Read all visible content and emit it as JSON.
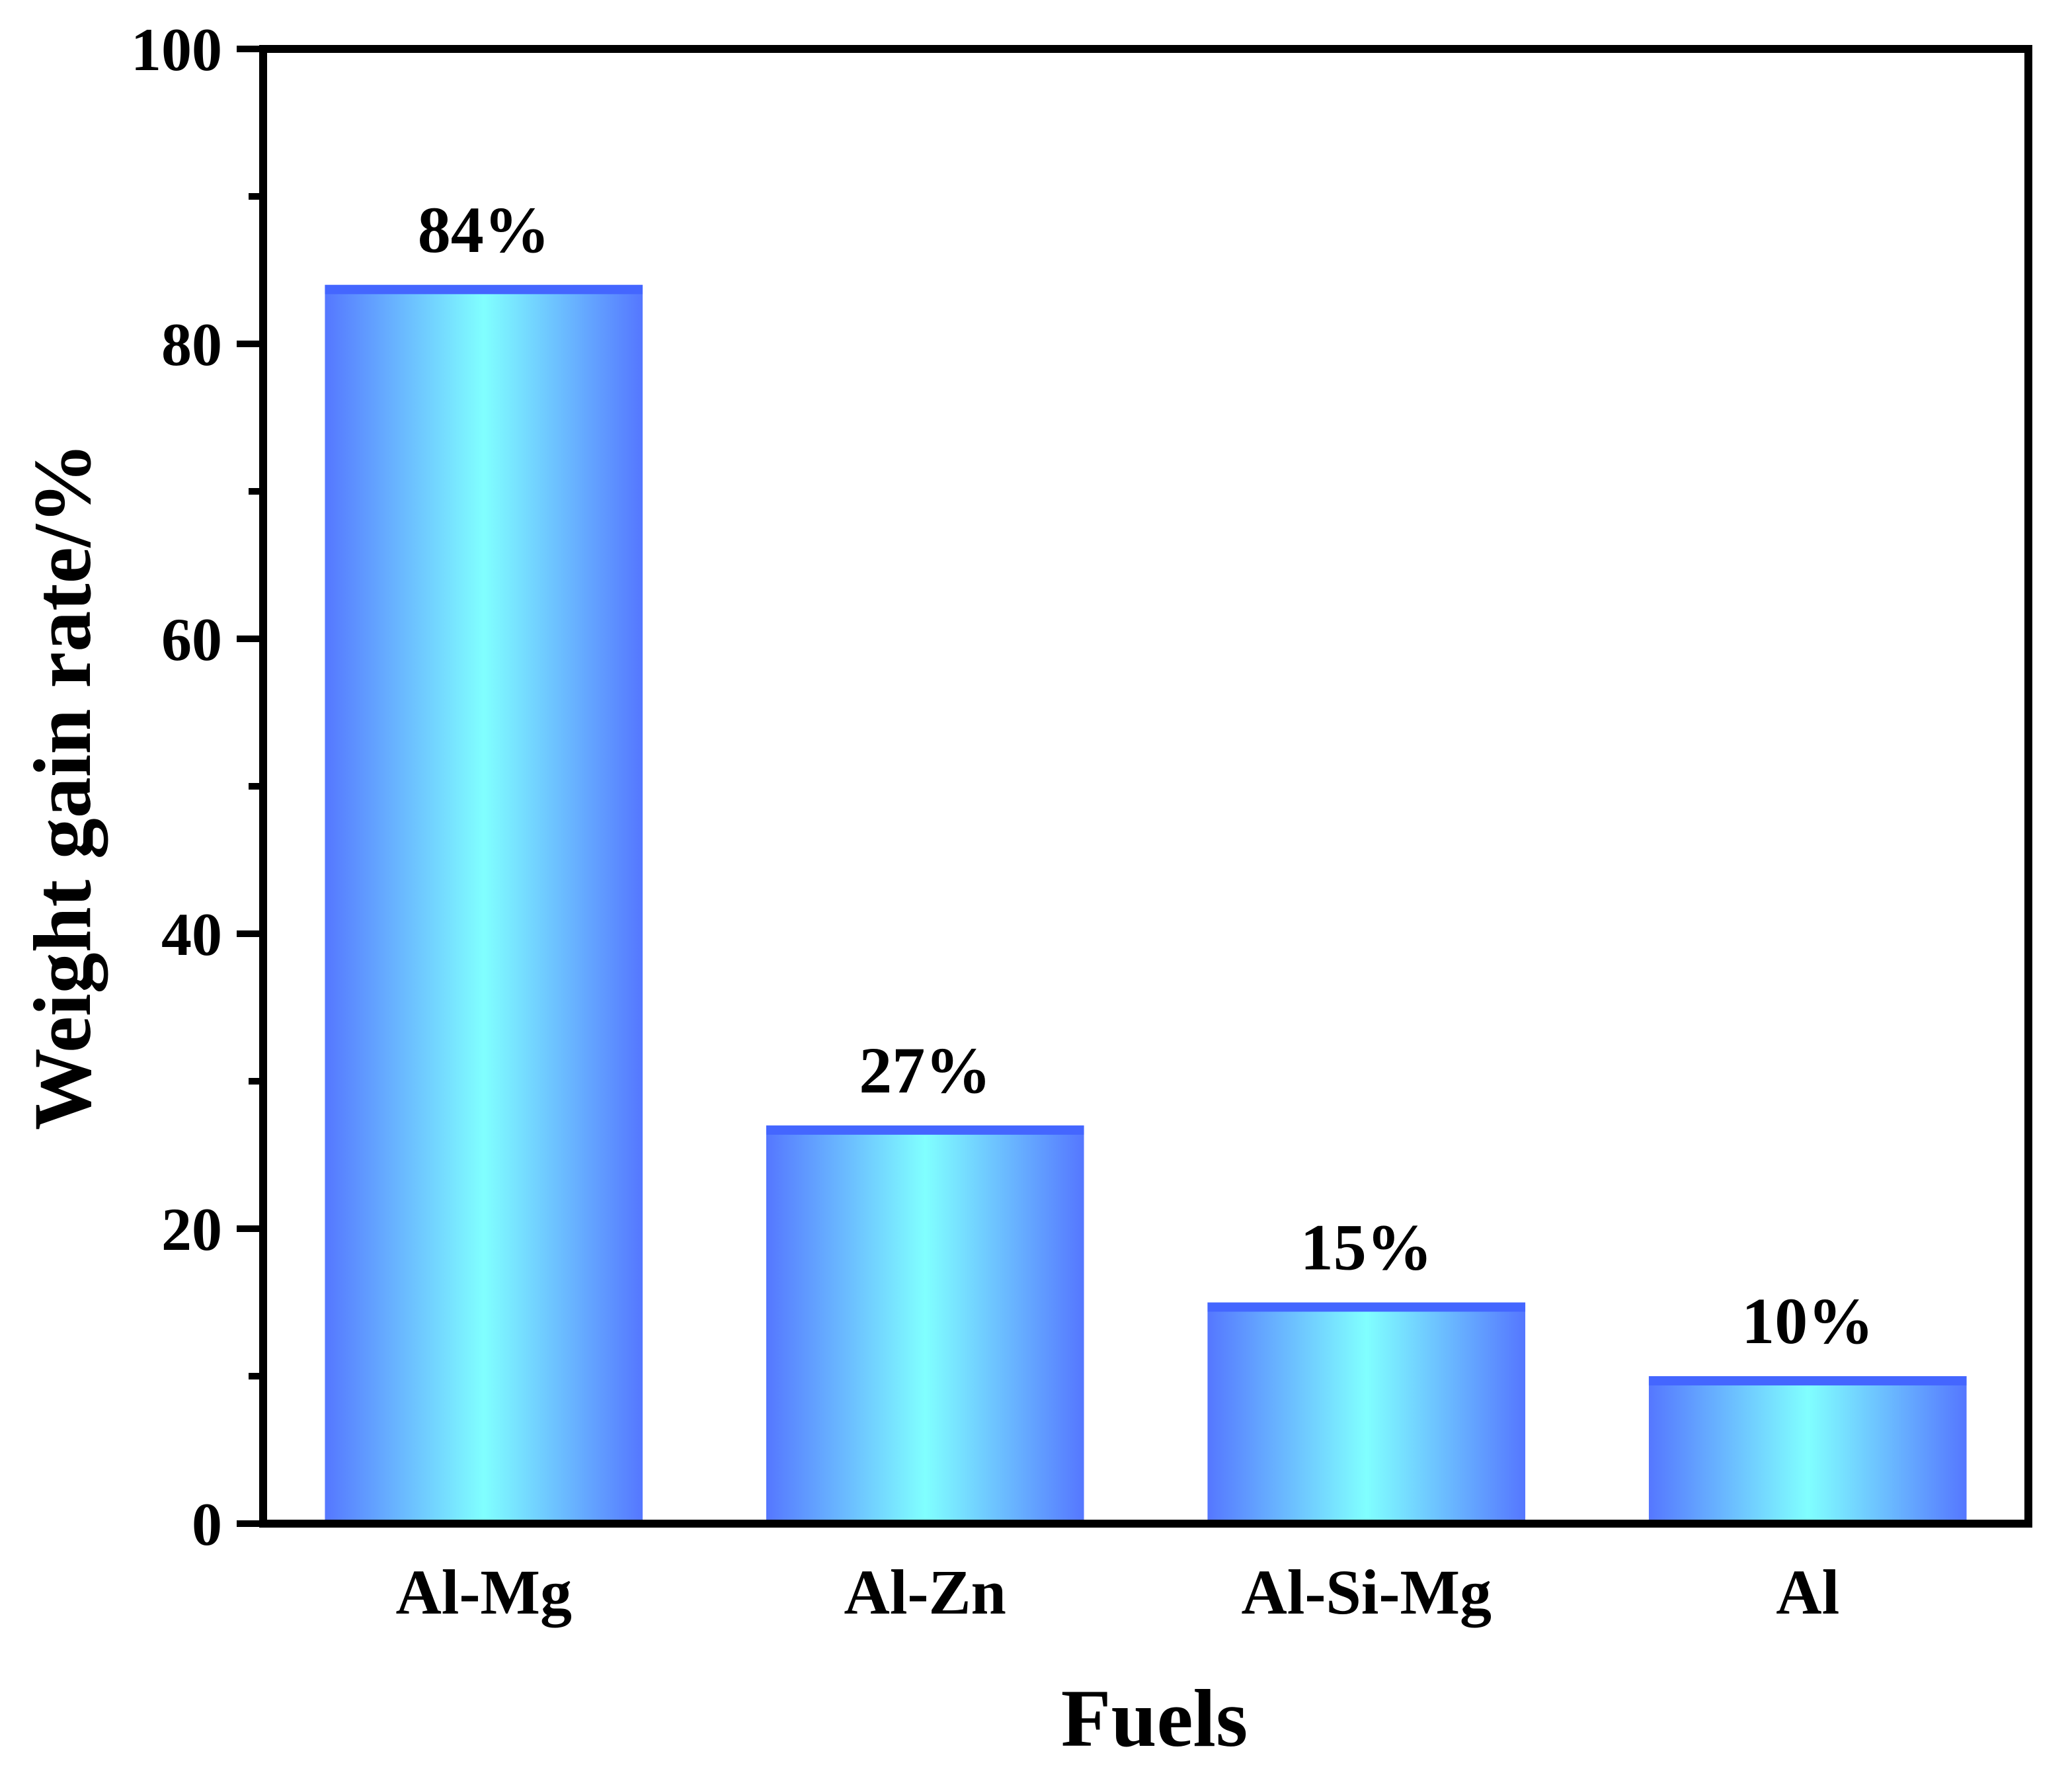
{
  "chart_data": {
    "type": "bar",
    "title": "",
    "xlabel": "Fuels",
    "ylabel": "Weight gain rate/%",
    "categories": [
      "Al-Mg",
      "Al-Zn",
      "Al-Si-Mg",
      "Al"
    ],
    "values": [
      84,
      27,
      15,
      10
    ],
    "data_labels": [
      "84%",
      "27%",
      "15%",
      "10%"
    ],
    "ylim": [
      0,
      100
    ],
    "yticks": [
      0,
      20,
      40,
      60,
      80,
      100
    ],
    "ytick_labels": [
      "0",
      "20",
      "40",
      "60",
      "80",
      "100"
    ],
    "y_minor_step": 10,
    "grid": false,
    "legend": "none"
  },
  "colors": {
    "bar_edge": "#5577ff",
    "bar_center": "#80ffff",
    "bar_top": "#4466ff",
    "axis": "#000000"
  }
}
